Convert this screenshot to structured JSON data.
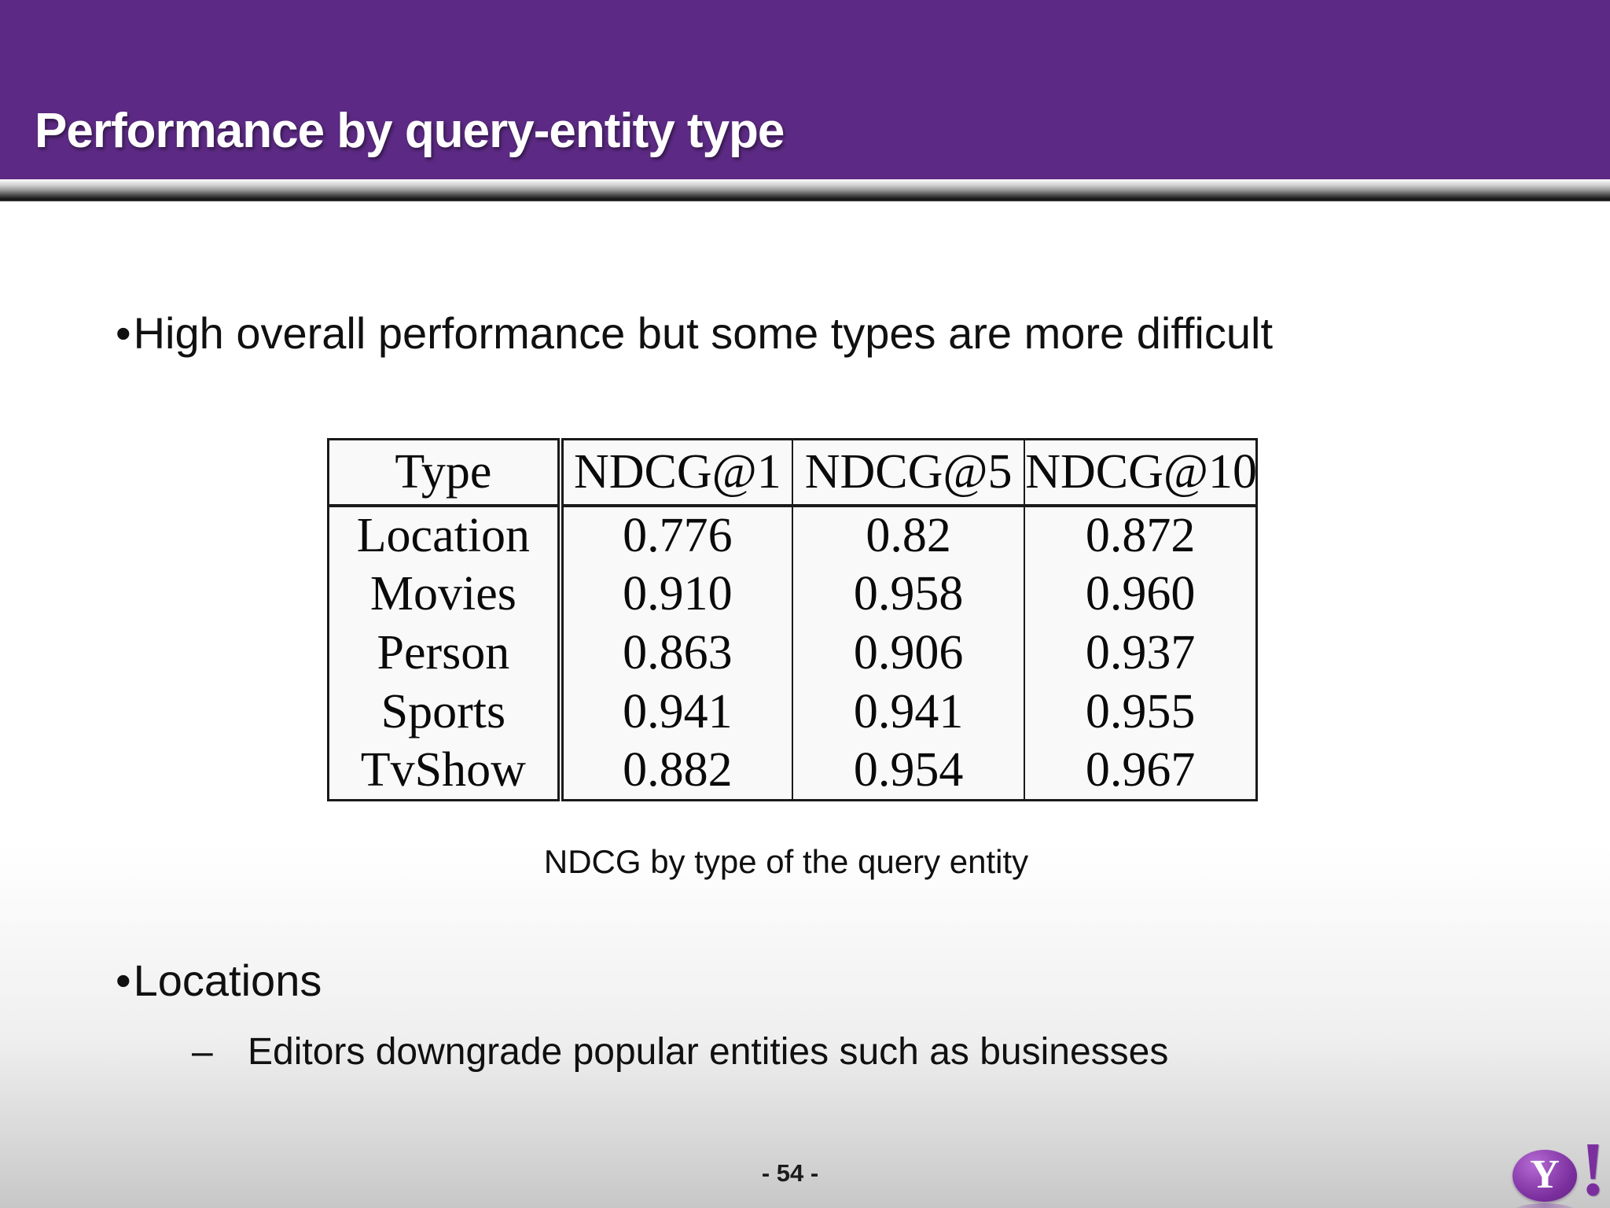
{
  "colors": {
    "header_purple": "#5c2a84",
    "logo_purple": "#7b2f9e",
    "text_black": "#101010",
    "table_border": "#1a1a1a"
  },
  "header": {
    "title": "Performance by query-entity type"
  },
  "content": {
    "bullet_char": "•",
    "dash_char": "–",
    "bullet1": "High overall performance but some types are more difficult",
    "bullet2": "Locations",
    "sub_bullet2": "Editors downgrade popular entities such as businesses",
    "table_caption": "NDCG by type of the query entity"
  },
  "table": {
    "headers": [
      "Type",
      "NDCG@1",
      "NDCG@5",
      "NDCG@10"
    ],
    "rows": [
      [
        "Location",
        "0.776",
        "0.82",
        "0.872"
      ],
      [
        "Movies",
        "0.910",
        "0.958",
        "0.960"
      ],
      [
        "Person",
        "0.863",
        "0.906",
        "0.937"
      ],
      [
        "Sports",
        "0.941",
        "0.941",
        "0.955"
      ],
      [
        "TvShow",
        "0.882",
        "0.954",
        "0.967"
      ]
    ]
  },
  "footer": {
    "page_number": "- 54 -"
  },
  "logo": {
    "y": "Y",
    "exclamation": "!"
  }
}
